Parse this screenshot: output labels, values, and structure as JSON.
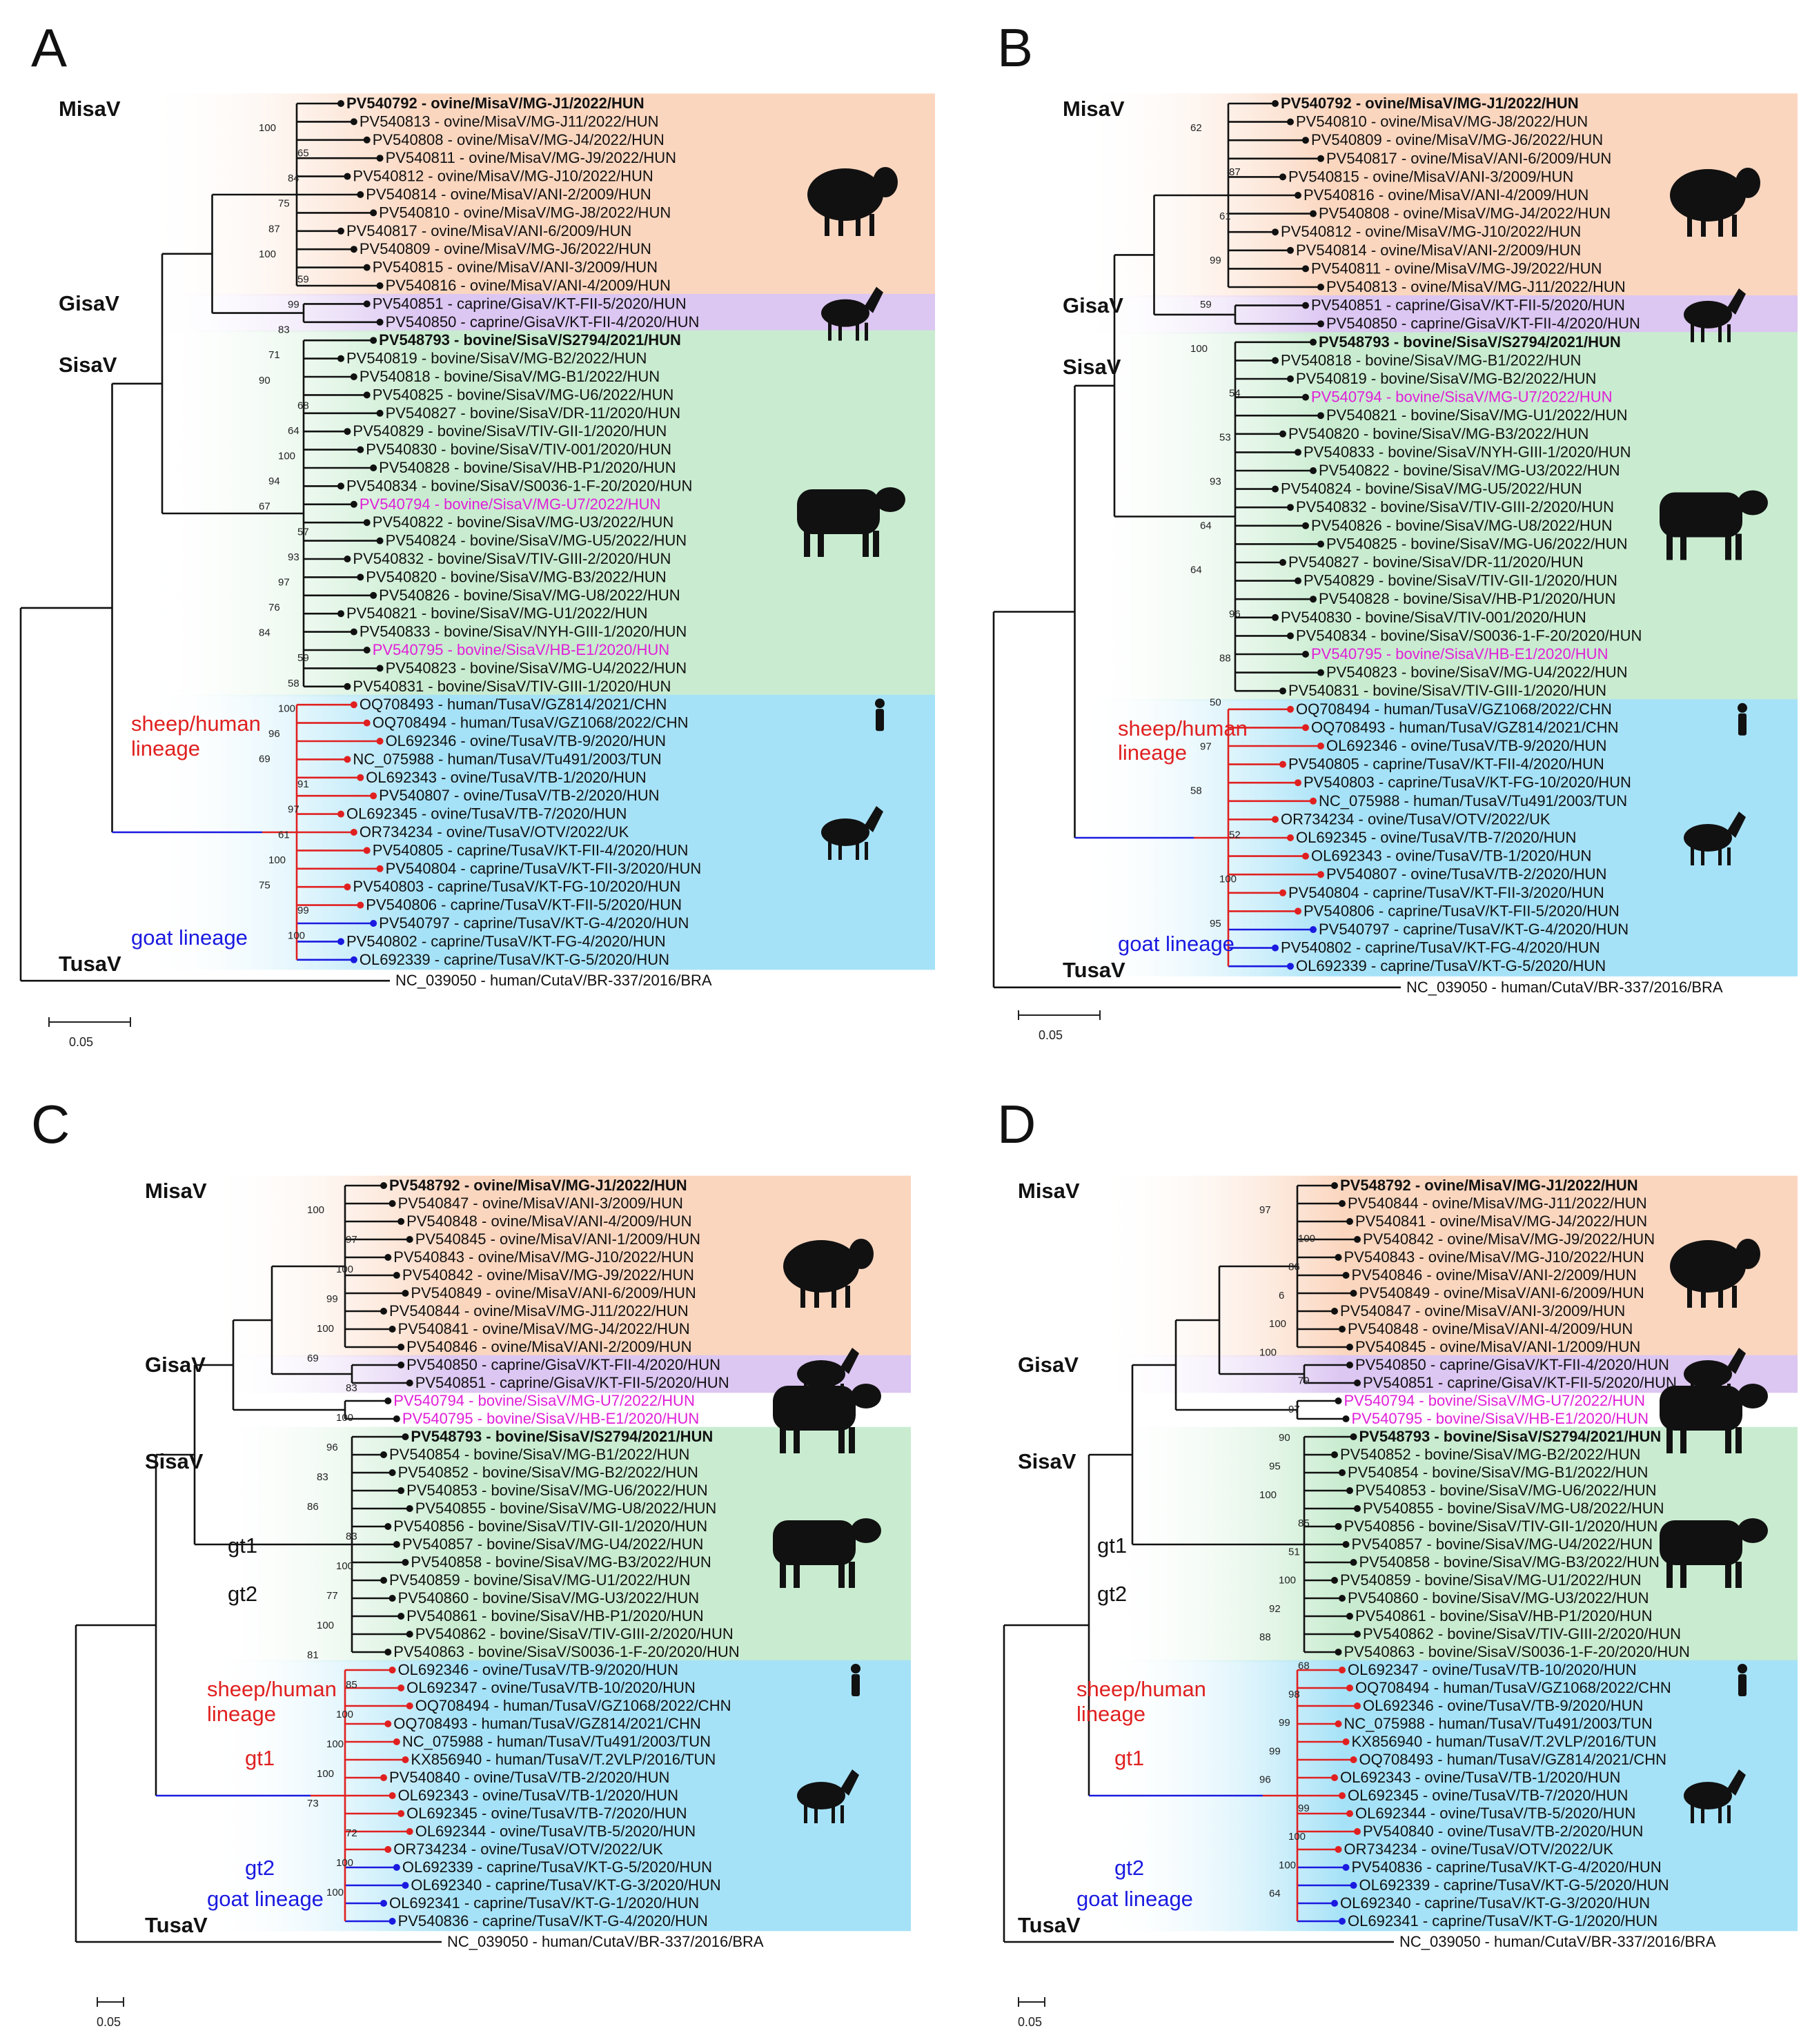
{
  "colors": {
    "misa": "#fbd6bf",
    "gisa": "#dcc6f2",
    "sisa": "#c9ecd0",
    "tusa": "#a6e2f7",
    "red": "#e02020",
    "blue": "#1a1ae0",
    "magenta": "#e020d8",
    "line": "#111111"
  },
  "scale_label": "0.05",
  "outgroup": "NC_039050 - human/CutaV/BR-337/2016/BRA",
  "panels": [
    {
      "label": "A",
      "virus_labels": {
        "misa": "MisaV",
        "gisa": "GisaV",
        "sisa": "SisaV",
        "tusa": "TusaV"
      },
      "lineage_labels": [
        {
          "text": "sheep/human\nlineage",
          "color": "red"
        },
        {
          "text": "goat lineage",
          "color": "blue"
        }
      ],
      "misa": [
        "PV540792 - ovine/MisaV/MG-J1/2022/HUN",
        "PV540813 - ovine/MisaV/MG-J11/2022/HUN",
        "PV540808 - ovine/MisaV/MG-J4/2022/HUN",
        "PV540811 - ovine/MisaV/MG-J9/2022/HUN",
        "PV540812 - ovine/MisaV/MG-J10/2022/HUN",
        "PV540814 - ovine/MisaV/ANI-2/2009/HUN",
        "PV540810 - ovine/MisaV/MG-J8/2022/HUN",
        "PV540817 - ovine/MisaV/ANI-6/2009/HUN",
        "PV540809 - ovine/MisaV/MG-J6/2022/HUN",
        "PV540815 - ovine/MisaV/ANI-3/2009/HUN",
        "PV540816 - ovine/MisaV/ANI-4/2009/HUN"
      ],
      "gisa": [
        "PV540851 - caprine/GisaV/KT-FII-5/2020/HUN",
        "PV540850 - caprine/GisaV/KT-FII-4/2020/HUN"
      ],
      "extra": [],
      "sisa": [
        "PV548793 - bovine/SisaV/S2794/2021/HUN",
        "PV540819 - bovine/SisaV/MG-B2/2022/HUN",
        "PV540818 - bovine/SisaV/MG-B1/2022/HUN",
        "PV540825 - bovine/SisaV/MG-U6/2022/HUN",
        "PV540827 - bovine/SisaV/DR-11/2020/HUN",
        "PV540829 - bovine/SisaV/TIV-GII-1/2020/HUN",
        "PV540830 - bovine/SisaV/TIV-001/2020/HUN",
        "PV540828 - bovine/SisaV/HB-P1/2020/HUN",
        "PV540834 - bovine/SisaV/S0036-1-F-20/2020/HUN",
        "PV540794 - bovine/SisaV/MG-U7/2022/HUN",
        "PV540822 - bovine/SisaV/MG-U3/2022/HUN",
        "PV540824 - bovine/SisaV/MG-U5/2022/HUN",
        "PV540832 - bovine/SisaV/TIV-GIII-2/2020/HUN",
        "PV540820 - bovine/SisaV/MG-B3/2022/HUN",
        "PV540826 - bovine/SisaV/MG-U8/2022/HUN",
        "PV540821 - bovine/SisaV/MG-U1/2022/HUN",
        "PV540833 - bovine/SisaV/NYH-GIII-1/2020/HUN",
        "PV540795 - bovine/SisaV/HB-E1/2020/HUN",
        "PV540823 - bovine/SisaV/MG-U4/2022/HUN",
        "PV540831 - bovine/SisaV/TIV-GIII-1/2020/HUN"
      ],
      "tusa": [
        "OQ708493 - human/TusaV/GZ814/2021/CHN",
        "OQ708494 - human/TusaV/GZ1068/2022/CHN",
        "OL692346 - ovine/TusaV/TB-9/2020/HUN",
        "NC_075988 - human/TusaV/Tu491/2003/TUN",
        "OL692343 - ovine/TusaV/TB-1/2020/HUN",
        "PV540807 - ovine/TusaV/TB-2/2020/HUN",
        "OL692345 - ovine/TusaV/TB-7/2020/HUN",
        "OR734234 - ovine/TusaV/OTV/2022/UK",
        "PV540805 - caprine/TusaV/KT-FII-4/2020/HUN",
        "PV540804 - caprine/TusaV/KT-FII-3/2020/HUN",
        "PV540803 - caprine/TusaV/KT-FG-10/2020/HUN",
        "PV540806 - caprine/TusaV/KT-FII-5/2020/HUN",
        "PV540797 - caprine/TusaV/KT-G-4/2020/HUN",
        "PV540802 - caprine/TusaV/KT-FG-4/2020/HUN",
        "OL692339 - caprine/TusaV/KT-G-5/2020/HUN"
      ],
      "bold": [
        "PV540792 - ovine/MisaV/MG-J1/2022/HUN",
        "PV548793 - bovine/SisaV/S2794/2021/HUN"
      ],
      "magenta": [
        "PV540794 - bovine/SisaV/MG-U7/2022/HUN",
        "PV540795 - bovine/SisaV/HB-E1/2020/HUN"
      ],
      "red_tips": [
        "OQ708493 - human/TusaV/GZ814/2021/CHN",
        "OQ708494 - human/TusaV/GZ1068/2022/CHN",
        "OL692346 - ovine/TusaV/TB-9/2020/HUN",
        "NC_075988 - human/TusaV/Tu491/2003/TUN",
        "OL692343 - ovine/TusaV/TB-1/2020/HUN",
        "PV540807 - ovine/TusaV/TB-2/2020/HUN",
        "OL692345 - ovine/TusaV/TB-7/2020/HUN",
        "OR734234 - ovine/TusaV/OTV/2022/UK",
        "PV540805 - caprine/TusaV/KT-FII-4/2020/HUN",
        "PV540804 - caprine/TusaV/KT-FII-3/2020/HUN",
        "PV540803 - caprine/TusaV/KT-FG-10/2020/HUN",
        "PV540806 - caprine/TusaV/KT-FII-5/2020/HUN"
      ],
      "blue_tips": [
        "PV540797 - caprine/TusaV/KT-G-4/2020/HUN",
        "PV540802 - caprine/TusaV/KT-FG-4/2020/HUN",
        "OL692339 - caprine/TusaV/KT-G-5/2020/HUN"
      ],
      "bootstraps": [
        "100",
        "65",
        "84",
        "75",
        "87",
        "100",
        "59",
        "99",
        "83",
        "71",
        "90",
        "68",
        "64",
        "100",
        "94",
        "67",
        "57",
        "93",
        "97",
        "76",
        "84",
        "59",
        "58",
        "100",
        "96",
        "69",
        "91",
        "97",
        "61",
        "100",
        "75",
        "99",
        "100"
      ]
    },
    {
      "label": "B",
      "virus_labels": {
        "misa": "MisaV",
        "gisa": "GisaV",
        "sisa": "SisaV",
        "tusa": "TusaV"
      },
      "lineage_labels": [
        {
          "text": "sheep/human\nlineage",
          "color": "red"
        },
        {
          "text": "goat lineage",
          "color": "blue"
        }
      ],
      "misa": [
        "PV540792 - ovine/MisaV/MG-J1/2022/HUN",
        "PV540810 - ovine/MisaV/MG-J8/2022/HUN",
        "PV540809 - ovine/MisaV/MG-J6/2022/HUN",
        "PV540817 - ovine/MisaV/ANI-6/2009/HUN",
        "PV540815 - ovine/MisaV/ANI-3/2009/HUN",
        "PV540816 - ovine/MisaV/ANI-4/2009/HUN",
        "PV540808 - ovine/MisaV/MG-J4/2022/HUN",
        "PV540812 - ovine/MisaV/MG-J10/2022/HUN",
        "PV540814 - ovine/MisaV/ANI-2/2009/HUN",
        "PV540811 - ovine/MisaV/MG-J9/2022/HUN",
        "PV540813 - ovine/MisaV/MG-J11/2022/HUN"
      ],
      "gisa": [
        "PV540851 - caprine/GisaV/KT-FII-5/2020/HUN",
        "PV540850 - caprine/GisaV/KT-FII-4/2020/HUN"
      ],
      "extra": [],
      "sisa": [
        "PV548793 - bovine/SisaV/S2794/2021/HUN",
        "PV540818 - bovine/SisaV/MG-B1/2022/HUN",
        "PV540819 - bovine/SisaV/MG-B2/2022/HUN",
        "PV540794 - bovine/SisaV/MG-U7/2022/HUN",
        "PV540821 - bovine/SisaV/MG-U1/2022/HUN",
        "PV540820 - bovine/SisaV/MG-B3/2022/HUN",
        "PV540833 - bovine/SisaV/NYH-GIII-1/2020/HUN",
        "PV540822 - bovine/SisaV/MG-U3/2022/HUN",
        "PV540824 - bovine/SisaV/MG-U5/2022/HUN",
        "PV540832 - bovine/SisaV/TIV-GIII-2/2020/HUN",
        "PV540826 - bovine/SisaV/MG-U8/2022/HUN",
        "PV540825 - bovine/SisaV/MG-U6/2022/HUN",
        "PV540827 - bovine/SisaV/DR-11/2020/HUN",
        "PV540829 - bovine/SisaV/TIV-GII-1/2020/HUN",
        "PV540828 - bovine/SisaV/HB-P1/2020/HUN",
        "PV540830 - bovine/SisaV/TIV-001/2020/HUN",
        "PV540834 - bovine/SisaV/S0036-1-F-20/2020/HUN",
        "PV540795 - bovine/SisaV/HB-E1/2020/HUN",
        "PV540823 - bovine/SisaV/MG-U4/2022/HUN",
        "PV540831 - bovine/SisaV/TIV-GIII-1/2020/HUN"
      ],
      "tusa": [
        "OQ708494 - human/TusaV/GZ1068/2022/CHN",
        "OQ708493 - human/TusaV/GZ814/2021/CHN",
        "OL692346 - ovine/TusaV/TB-9/2020/HUN",
        "PV540805 - caprine/TusaV/KT-FII-4/2020/HUN",
        "PV540803 - caprine/TusaV/KT-FG-10/2020/HUN",
        "NC_075988 - human/TusaV/Tu491/2003/TUN",
        "OR734234 - ovine/TusaV/OTV/2022/UK",
        "OL692345 - ovine/TusaV/TB-7/2020/HUN",
        "OL692343 - ovine/TusaV/TB-1/2020/HUN",
        "PV540807 - ovine/TusaV/TB-2/2020/HUN",
        "PV540804 - caprine/TusaV/KT-FII-3/2020/HUN",
        "PV540806 - caprine/TusaV/KT-FII-5/2020/HUN",
        "PV540797 - caprine/TusaV/KT-G-4/2020/HUN",
        "PV540802 - caprine/TusaV/KT-FG-4/2020/HUN",
        "OL692339 - caprine/TusaV/KT-G-5/2020/HUN"
      ],
      "bold": [
        "PV540792 - ovine/MisaV/MG-J1/2022/HUN",
        "PV548793 - bovine/SisaV/S2794/2021/HUN"
      ],
      "magenta": [
        "PV540794 - bovine/SisaV/MG-U7/2022/HUN",
        "PV540795 - bovine/SisaV/HB-E1/2020/HUN"
      ],
      "red_tips": [
        "OQ708494 - human/TusaV/GZ1068/2022/CHN",
        "OQ708493 - human/TusaV/GZ814/2021/CHN",
        "OL692346 - ovine/TusaV/TB-9/2020/HUN",
        "PV540805 - caprine/TusaV/KT-FII-4/2020/HUN",
        "PV540803 - caprine/TusaV/KT-FG-10/2020/HUN",
        "NC_075988 - human/TusaV/Tu491/2003/TUN",
        "OR734234 - ovine/TusaV/OTV/2022/UK",
        "OL692345 - ovine/TusaV/TB-7/2020/HUN",
        "OL692343 - ovine/TusaV/TB-1/2020/HUN",
        "PV540807 - ovine/TusaV/TB-2/2020/HUN",
        "PV540804 - caprine/TusaV/KT-FII-3/2020/HUN",
        "PV540806 - caprine/TusaV/KT-FII-5/2020/HUN"
      ],
      "blue_tips": [
        "PV540797 - caprine/TusaV/KT-G-4/2020/HUN",
        "PV540802 - caprine/TusaV/KT-FG-4/2020/HUN",
        "OL692339 - caprine/TusaV/KT-G-5/2020/HUN"
      ],
      "bootstraps": [
        "62",
        "87",
        "61",
        "99",
        "59",
        "100",
        "54",
        "53",
        "93",
        "64",
        "64",
        "96",
        "88",
        "50",
        "97",
        "58",
        "52",
        "100",
        "95"
      ]
    },
    {
      "label": "C",
      "virus_labels": {
        "misa": "MisaV",
        "gisa": "GisaV",
        "sisa": "SisaV",
        "tusa": "TusaV"
      },
      "lineage_labels": [
        {
          "text": "sheep/human\nlineage",
          "color": "red"
        },
        {
          "text": "gt1",
          "color": "red"
        },
        {
          "text": "gt2",
          "color": "blue"
        },
        {
          "text": "goat lineage",
          "color": "blue"
        },
        {
          "text": "gt1",
          "color": "black"
        },
        {
          "text": "gt2",
          "color": "black"
        }
      ],
      "misa": [
        "PV548792 - ovine/MisaV/MG-J1/2022/HUN",
        "PV540847 - ovine/MisaV/ANI-3/2009/HUN",
        "PV540848 - ovine/MisaV/ANI-4/2009/HUN",
        "PV540845 - ovine/MisaV/ANI-1/2009/HUN",
        "PV540843 - ovine/MisaV/MG-J10/2022/HUN",
        "PV540842 - ovine/MisaV/MG-J9/2022/HUN",
        "PV540849 - ovine/MisaV/ANI-6/2009/HUN",
        "PV540844 - ovine/MisaV/MG-J11/2022/HUN",
        "PV540841 - ovine/MisaV/MG-J4/2022/HUN",
        "PV540846 - ovine/MisaV/ANI-2/2009/HUN"
      ],
      "gisa": [
        "PV540850 - caprine/GisaV/KT-FII-4/2020/HUN",
        "PV540851 - caprine/GisaV/KT-FII-5/2020/HUN"
      ],
      "extra": [
        "PV540794 - bovine/SisaV/MG-U7/2022/HUN",
        "PV540795 - bovine/SisaV/HB-E1/2020/HUN"
      ],
      "sisa": [
        "PV548793 - bovine/SisaV/S2794/2021/HUN",
        "PV540854 - bovine/SisaV/MG-B1/2022/HUN",
        "PV540852 - bovine/SisaV/MG-B2/2022/HUN",
        "PV540853 - bovine/SisaV/MG-U6/2022/HUN",
        "PV540855 - bovine/SisaV/MG-U8/2022/HUN",
        "PV540856 - bovine/SisaV/TIV-GII-1/2020/HUN",
        "PV540857 - bovine/SisaV/MG-U4/2022/HUN",
        "PV540858 - bovine/SisaV/MG-B3/2022/HUN",
        "PV540859 - bovine/SisaV/MG-U1/2022/HUN",
        "PV540860 - bovine/SisaV/MG-U3/2022/HUN",
        "PV540861 - bovine/SisaV/HB-P1/2020/HUN",
        "PV540862 - bovine/SisaV/TIV-GIII-2/2020/HUN",
        "PV540863 - bovine/SisaV/S0036-1-F-20/2020/HUN"
      ],
      "tusa": [
        "OL692346 - ovine/TusaV/TB-9/2020/HUN",
        "OL692347 - ovine/TusaV/TB-10/2020/HUN",
        "OQ708494 - human/TusaV/GZ1068/2022/CHN",
        "OQ708493 - human/TusaV/GZ814/2021/CHN",
        "NC_075988 - human/TusaV/Tu491/2003/TUN",
        "KX856940 - human/TusaV/T.2VLP/2016/TUN",
        "PV540840 - ovine/TusaV/TB-2/2020/HUN",
        "OL692343 - ovine/TusaV/TB-1/2020/HUN",
        "OL692345 - ovine/TusaV/TB-7/2020/HUN",
        "OL692344 - ovine/TusaV/TB-5/2020/HUN",
        "OR734234 - ovine/TusaV/OTV/2022/UK",
        "OL692339 - caprine/TusaV/KT-G-5/2020/HUN",
        "OL692340 - caprine/TusaV/KT-G-3/2020/HUN",
        "OL692341 - caprine/TusaV/KT-G-1/2020/HUN",
        "PV540836 - caprine/TusaV/KT-G-4/2020/HUN"
      ],
      "bold": [
        "PV548792 - ovine/MisaV/MG-J1/2022/HUN",
        "PV548793 - bovine/SisaV/S2794/2021/HUN"
      ],
      "magenta": [
        "PV540794 - bovine/SisaV/MG-U7/2022/HUN",
        "PV540795 - bovine/SisaV/HB-E1/2020/HUN"
      ],
      "red_tips": [
        "OL692346 - ovine/TusaV/TB-9/2020/HUN",
        "OL692347 - ovine/TusaV/TB-10/2020/HUN",
        "OQ708494 - human/TusaV/GZ1068/2022/CHN",
        "OQ708493 - human/TusaV/GZ814/2021/CHN",
        "NC_075988 - human/TusaV/Tu491/2003/TUN",
        "KX856940 - human/TusaV/T.2VLP/2016/TUN",
        "PV540840 - ovine/TusaV/TB-2/2020/HUN",
        "OL692343 - ovine/TusaV/TB-1/2020/HUN",
        "OL692345 - ovine/TusaV/TB-7/2020/HUN",
        "OL692344 - ovine/TusaV/TB-5/2020/HUN",
        "OR734234 - ovine/TusaV/OTV/2022/UK"
      ],
      "blue_tips": [
        "OL692339 - caprine/TusaV/KT-G-5/2020/HUN",
        "OL692340 - caprine/TusaV/KT-G-3/2020/HUN",
        "OL692341 - caprine/TusaV/KT-G-1/2020/HUN",
        "PV540836 - caprine/TusaV/KT-G-4/2020/HUN"
      ],
      "bootstraps": [
        "100",
        "97",
        "100",
        "99",
        "100",
        "69",
        "83",
        "100",
        "96",
        "83",
        "86",
        "83",
        "100",
        "77",
        "100",
        "81",
        "85",
        "100",
        "100",
        "100",
        "73",
        "72",
        "100",
        "100"
      ]
    },
    {
      "label": "D",
      "virus_labels": {
        "misa": "MisaV",
        "gisa": "GisaV",
        "sisa": "SisaV",
        "tusa": "TusaV"
      },
      "lineage_labels": [
        {
          "text": "sheep/human\nlineage",
          "color": "red"
        },
        {
          "text": "gt1",
          "color": "red"
        },
        {
          "text": "gt2",
          "color": "blue"
        },
        {
          "text": "goat lineage",
          "color": "blue"
        },
        {
          "text": "gt1",
          "color": "black"
        },
        {
          "text": "gt2",
          "color": "black"
        }
      ],
      "misa": [
        "PV548792 - ovine/MisaV/MG-J1/2022/HUN",
        "PV540844 - ovine/MisaV/MG-J11/2022/HUN",
        "PV540841 - ovine/MisaV/MG-J4/2022/HUN",
        "PV540842 - ovine/MisaV/MG-J9/2022/HUN",
        "PV540843 - ovine/MisaV/MG-J10/2022/HUN",
        "PV540846 - ovine/MisaV/ANI-2/2009/HUN",
        "PV540849 - ovine/MisaV/ANI-6/2009/HUN",
        "PV540847 - ovine/MisaV/ANI-3/2009/HUN",
        "PV540848 - ovine/MisaV/ANI-4/2009/HUN",
        "PV540845 - ovine/MisaV/ANI-1/2009/HUN"
      ],
      "gisa": [
        "PV540850 - caprine/GisaV/KT-FII-4/2020/HUN",
        "PV540851 - caprine/GisaV/KT-FII-5/2020/HUN"
      ],
      "extra": [
        "PV540794 - bovine/SisaV/MG-U7/2022/HUN",
        "PV540795 - bovine/SisaV/HB-E1/2020/HUN"
      ],
      "sisa": [
        "PV548793 - bovine/SisaV/S2794/2021/HUN",
        "PV540852 - bovine/SisaV/MG-B2/2022/HUN",
        "PV540854 - bovine/SisaV/MG-B1/2022/HUN",
        "PV540853 - bovine/SisaV/MG-U6/2022/HUN",
        "PV540855 - bovine/SisaV/MG-U8/2022/HUN",
        "PV540856 - bovine/SisaV/TIV-GII-1/2020/HUN",
        "PV540857 - bovine/SisaV/MG-U4/2022/HUN",
        "PV540858 - bovine/SisaV/MG-B3/2022/HUN",
        "PV540859 - bovine/SisaV/MG-U1/2022/HUN",
        "PV540860 - bovine/SisaV/MG-U3/2022/HUN",
        "PV540861 - bovine/SisaV/HB-P1/2020/HUN",
        "PV540862 - bovine/SisaV/TIV-GIII-2/2020/HUN",
        "PV540863 - bovine/SisaV/S0036-1-F-20/2020/HUN"
      ],
      "tusa": [
        "OL692347 - ovine/TusaV/TB-10/2020/HUN",
        "OQ708494 - human/TusaV/GZ1068/2022/CHN",
        "OL692346 - ovine/TusaV/TB-9/2020/HUN",
        "NC_075988 - human/TusaV/Tu491/2003/TUN",
        "KX856940 - human/TusaV/T.2VLP/2016/TUN",
        "OQ708493 - human/TusaV/GZ814/2021/CHN",
        "OL692343 - ovine/TusaV/TB-1/2020/HUN",
        "OL692345 - ovine/TusaV/TB-7/2020/HUN",
        "OL692344 - ovine/TusaV/TB-5/2020/HUN",
        "PV540840 - ovine/TusaV/TB-2/2020/HUN",
        "OR734234 - ovine/TusaV/OTV/2022/UK",
        "PV540836 - caprine/TusaV/KT-G-4/2020/HUN",
        "OL692339 - caprine/TusaV/KT-G-5/2020/HUN",
        "OL692340 - caprine/TusaV/KT-G-3/2020/HUN",
        "OL692341 - caprine/TusaV/KT-G-1/2020/HUN"
      ],
      "bold": [
        "PV548792 - ovine/MisaV/MG-J1/2022/HUN",
        "PV548793 - bovine/SisaV/S2794/2021/HUN"
      ],
      "magenta": [
        "PV540794 - bovine/SisaV/MG-U7/2022/HUN",
        "PV540795 - bovine/SisaV/HB-E1/2020/HUN"
      ],
      "red_tips": [
        "OL692347 - ovine/TusaV/TB-10/2020/HUN",
        "OQ708494 - human/TusaV/GZ1068/2022/CHN",
        "OL692346 - ovine/TusaV/TB-9/2020/HUN",
        "NC_075988 - human/TusaV/Tu491/2003/TUN",
        "KX856940 - human/TusaV/T.2VLP/2016/TUN",
        "OQ708493 - human/TusaV/GZ814/2021/CHN",
        "OL692343 - ovine/TusaV/TB-1/2020/HUN",
        "OL692345 - ovine/TusaV/TB-7/2020/HUN",
        "OL692344 - ovine/TusaV/TB-5/2020/HUN",
        "PV540840 - ovine/TusaV/TB-2/2020/HUN",
        "OR734234 - ovine/TusaV/OTV/2022/UK"
      ],
      "blue_tips": [
        "PV540836 - caprine/TusaV/KT-G-4/2020/HUN",
        "OL692339 - caprine/TusaV/KT-G-5/2020/HUN",
        "OL692340 - caprine/TusaV/KT-G-3/2020/HUN",
        "OL692341 - caprine/TusaV/KT-G-1/2020/HUN"
      ],
      "bootstraps": [
        "97",
        "100",
        "86",
        "6",
        "100",
        "100",
        "79",
        "97",
        "90",
        "95",
        "100",
        "85",
        "51",
        "100",
        "92",
        "88",
        "68",
        "98",
        "99",
        "99",
        "96",
        "99",
        "100",
        "100",
        "64"
      ]
    }
  ]
}
